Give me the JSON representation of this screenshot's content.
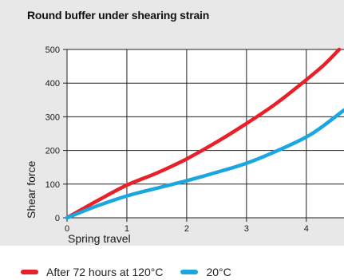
{
  "chart_data": {
    "type": "line",
    "title": "Round buffer under shearing strain",
    "xlabel": "Spring travel",
    "ylabel": "Shear force",
    "xlim": [
      0,
      4.63
    ],
    "ylim": [
      0,
      500
    ],
    "x_ticks": [
      "0",
      "1",
      "2",
      "3",
      "4"
    ],
    "y_ticks": [
      "0",
      "100",
      "200",
      "300",
      "400",
      "500"
    ],
    "grid": true,
    "legend_position": "bottom-left",
    "series": [
      {
        "name": "After 72 hours at 120°C",
        "color": "#e8202a",
        "x": [
          0,
          0.5,
          1.0,
          1.5,
          2.0,
          2.5,
          3.0,
          3.5,
          4.0,
          4.3,
          4.55
        ],
        "y": [
          0,
          50,
          97,
          133,
          175,
          225,
          280,
          340,
          410,
          455,
          500
        ]
      },
      {
        "name": "20°C",
        "color": "#1aa7e0",
        "x": [
          0,
          0.5,
          1.0,
          1.5,
          2.0,
          2.5,
          3.0,
          3.5,
          4.0,
          4.3,
          4.63
        ],
        "y": [
          0,
          35,
          65,
          88,
          110,
          135,
          162,
          198,
          240,
          275,
          320
        ]
      }
    ]
  }
}
